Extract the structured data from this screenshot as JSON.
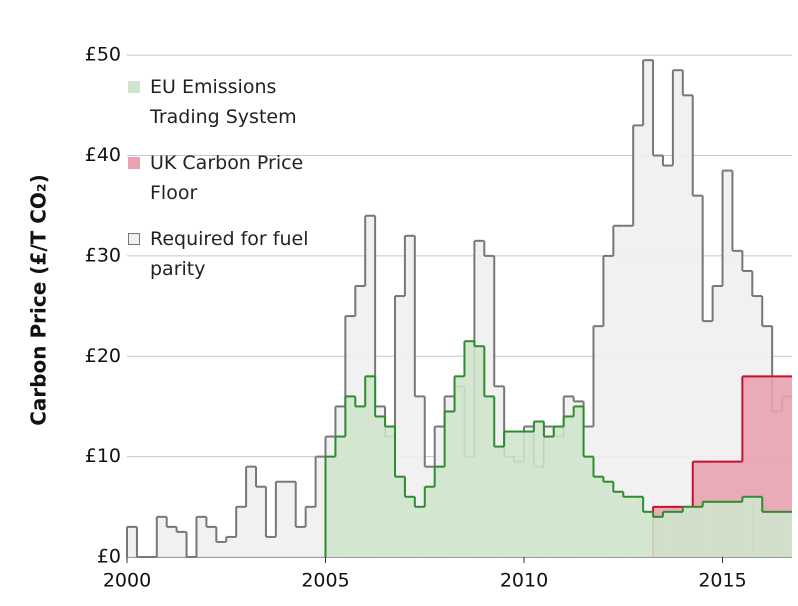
{
  "chart_data": {
    "type": "step-area",
    "ylabel": "Carbon Price (£/T CO₂)",
    "xlim": [
      2000,
      2016.75
    ],
    "ylim": [
      0,
      54
    ],
    "xticks": [
      2000,
      2005,
      2010,
      2015
    ],
    "yticks": [
      {
        "value": 0,
        "label": "£0"
      },
      {
        "value": 10,
        "label": "£10"
      },
      {
        "value": 20,
        "label": "£20"
      },
      {
        "value": 30,
        "label": "£30"
      },
      {
        "value": 40,
        "label": "£40"
      },
      {
        "value": 50,
        "label": "£50"
      }
    ],
    "grid": true,
    "legend": "upper left",
    "series": [
      {
        "name": "EU Emissions Trading System",
        "color": "#2e8b2e",
        "fill": "#cfe4cc",
        "x": [
          2005,
          2005.25,
          2005.5,
          2005.75,
          2006,
          2006.25,
          2006.5,
          2006.75,
          2007,
          2007.25,
          2007.5,
          2007.75,
          2008,
          2008.25,
          2008.5,
          2008.75,
          2009,
          2009.25,
          2009.5,
          2009.75,
          2010,
          2010.25,
          2010.5,
          2010.75,
          2011,
          2011.25,
          2011.5,
          2011.75,
          2012,
          2012.25,
          2012.5,
          2012.75,
          2013,
          2013.25,
          2013.5,
          2013.75,
          2014,
          2014.25,
          2014.5,
          2014.75,
          2015,
          2015.25,
          2015.5,
          2015.75,
          2016,
          2016.25,
          2016.5
        ],
        "values": [
          10,
          12,
          16,
          15,
          18,
          14,
          13,
          8,
          6,
          5,
          7,
          9,
          14.5,
          18,
          21.5,
          21,
          16,
          11,
          12.5,
          12.5,
          12.5,
          13.5,
          12,
          13,
          14,
          15,
          10,
          8,
          7.5,
          6.5,
          6,
          6,
          4.5,
          4,
          4.5,
          4.5,
          5,
          5,
          5.5,
          5.5,
          5.5,
          5.5,
          6,
          6,
          4.5,
          4.5,
          4.5
        ]
      },
      {
        "name": "UK Carbon Price Floor",
        "color": "#c8102e",
        "fill": "#e8a3b0",
        "x": [
          2013.25,
          2014.25,
          2015.5
        ],
        "values": [
          5,
          9.5,
          18
        ]
      },
      {
        "name": "Required for fuel parity",
        "color": "#777777",
        "fill": "#f0f0f0",
        "x": [
          2000,
          2000.25,
          2000.5,
          2000.75,
          2001,
          2001.25,
          2001.5,
          2001.75,
          2002,
          2002.25,
          2002.5,
          2002.75,
          2003,
          2003.25,
          2003.5,
          2003.75,
          2004,
          2004.25,
          2004.5,
          2004.75,
          2005,
          2005.25,
          2005.5,
          2005.75,
          2006,
          2006.25,
          2006.5,
          2006.75,
          2007,
          2007.25,
          2007.5,
          2007.75,
          2008,
          2008.25,
          2008.5,
          2008.75,
          2009,
          2009.25,
          2009.5,
          2009.75,
          2010,
          2010.25,
          2010.5,
          2010.75,
          2011,
          2011.25,
          2011.5,
          2011.75,
          2012,
          2012.25,
          2012.5,
          2012.75,
          2013,
          2013.25,
          2013.5,
          2013.75,
          2014,
          2014.25,
          2014.5,
          2014.75,
          2015,
          2015.25,
          2015.5,
          2015.75,
          2016,
          2016.25,
          2016.5
        ],
        "values": [
          3,
          0,
          0,
          4,
          3,
          2.5,
          0,
          4,
          3,
          1.5,
          2,
          5,
          9,
          7,
          2,
          7.5,
          7.5,
          3,
          5,
          10,
          12,
          15,
          24,
          27,
          34,
          15,
          12,
          26,
          32,
          16,
          9,
          13,
          16,
          17,
          10,
          31.5,
          30,
          17,
          10,
          9.5,
          13,
          9,
          13,
          12,
          16,
          15.5,
          13,
          23,
          30,
          33,
          33,
          43,
          49.5,
          40,
          39,
          48.5,
          46,
          36,
          23.5,
          27,
          38.5,
          30.5,
          28.5,
          26,
          23,
          14.5,
          16
        ]
      }
    ]
  }
}
